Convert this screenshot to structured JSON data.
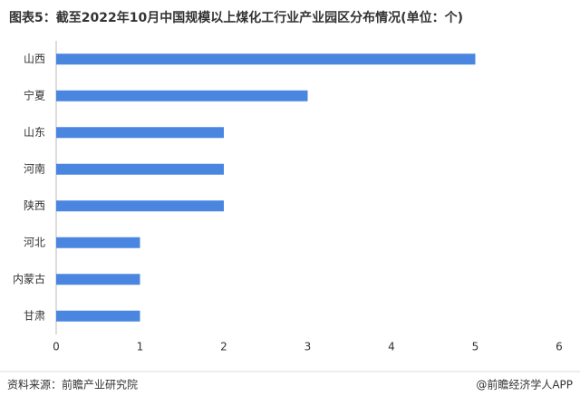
{
  "chart_data": {
    "type": "hbar",
    "title": "图表5：截至2022年10月中国规模以上煤化工行业产业园区分布情况(单位：个)",
    "categories": [
      "山西",
      "宁夏",
      "山东",
      "河南",
      "陕西",
      "河北",
      "内蒙古",
      "甘肃"
    ],
    "values": [
      5,
      3,
      2,
      2,
      2,
      1,
      1,
      1
    ],
    "color": "#4a86e0",
    "xlim": [
      0,
      6
    ],
    "xticks": [
      0,
      1,
      2,
      3,
      4,
      5,
      6
    ],
    "grid": false,
    "source": "资料来源：前瞻产业研究院",
    "credit": "@前瞻经济学人APP"
  }
}
